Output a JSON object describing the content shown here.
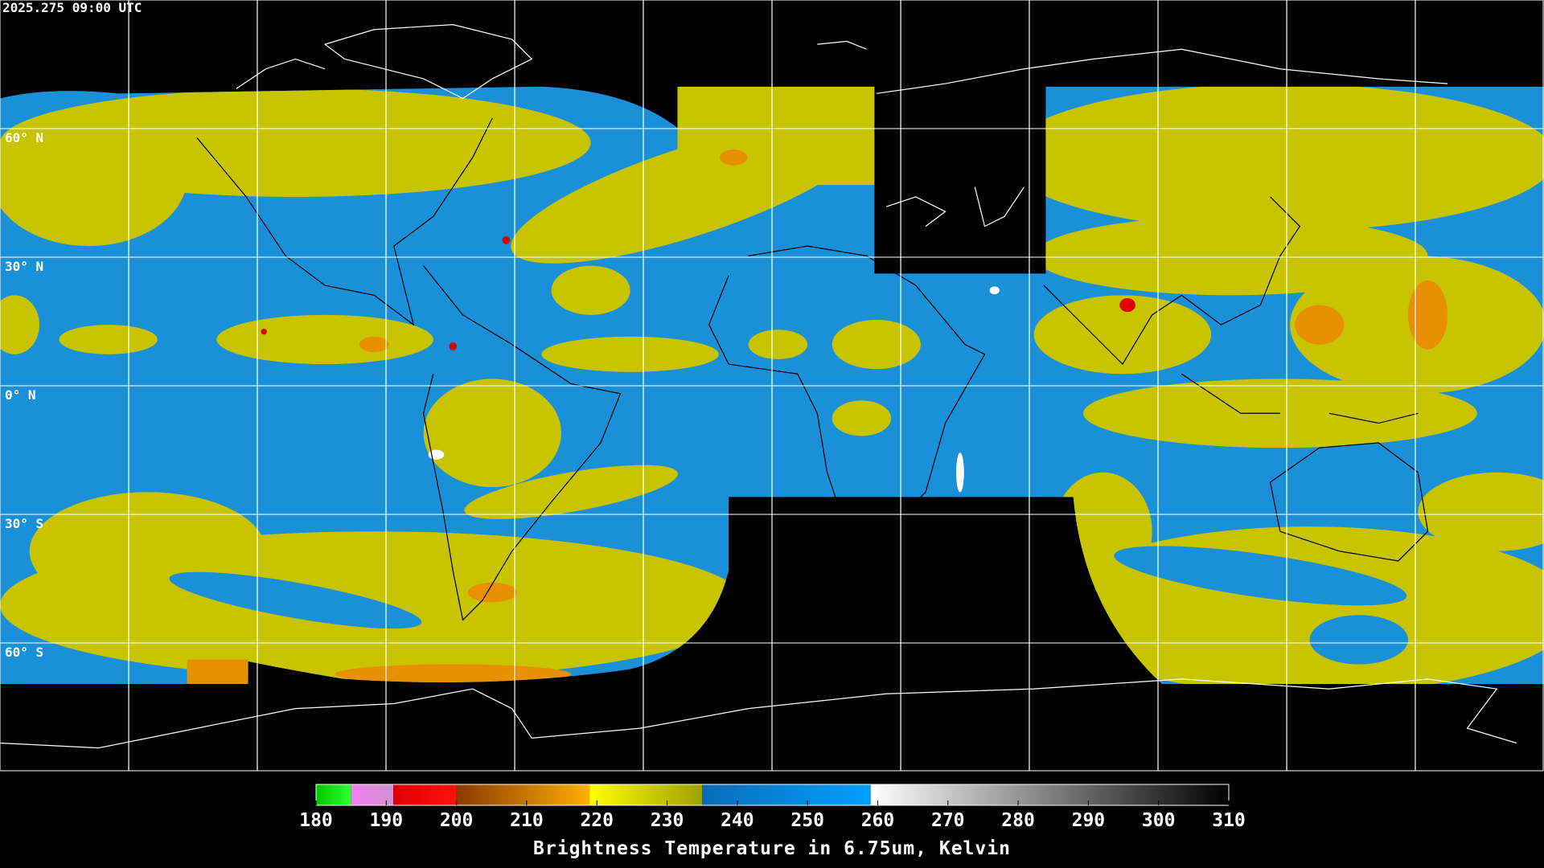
{
  "header": {
    "timestamp": "2025.275 09:00 UTC"
  },
  "map": {
    "type": "equirectangular",
    "latitude_lines": [
      {
        "value": 60,
        "label": "60° N"
      },
      {
        "value": 30,
        "label": "30° N"
      },
      {
        "value": 0,
        "label": "0° N"
      },
      {
        "value": -30,
        "label": "30° S"
      },
      {
        "value": -60,
        "label": "60° S"
      }
    ]
  },
  "colorbar": {
    "title": "Brightness Temperature in 6.75um, Kelvin",
    "range": [
      180,
      310
    ],
    "ticks": [
      180,
      190,
      200,
      210,
      220,
      230,
      240,
      250,
      260,
      270,
      280,
      290,
      300,
      310
    ],
    "segments": [
      {
        "from": 180,
        "to": 185,
        "colors": [
          "#00c800",
          "#30ff30"
        ]
      },
      {
        "from": 185,
        "to": 191,
        "colors": [
          "#f080f0",
          "#d090d0"
        ]
      },
      {
        "from": 191,
        "to": 200,
        "colors": [
          "#e00000",
          "#ff1010"
        ]
      },
      {
        "from": 200,
        "to": 219,
        "colors": [
          "#8a3a00",
          "#ffb000"
        ]
      },
      {
        "from": 219,
        "to": 235,
        "colors": [
          "#ffff00",
          "#a0a000"
        ]
      },
      {
        "from": 235,
        "to": 259,
        "colors": [
          "#0a6cb8",
          "#00a0ff"
        ]
      },
      {
        "from": 259,
        "to": 310,
        "colors": [
          "#ffffff",
          "#000000"
        ]
      }
    ]
  }
}
